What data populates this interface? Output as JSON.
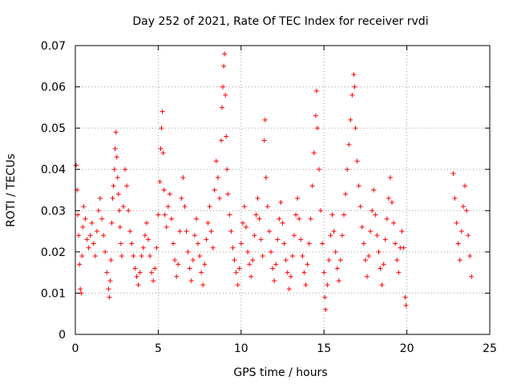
{
  "chart_data": {
    "type": "scatter",
    "title": "Day 252 of 2021, Rate Of TEC Index for receiver rvdi",
    "xlabel": "GPS time / hours",
    "ylabel": "ROTI / TECUs",
    "xlim": [
      0,
      25
    ],
    "ylim": [
      0,
      0.07
    ],
    "grid": true,
    "marker": "+",
    "series_color": "#ff0000",
    "x_ticks": [
      "0",
      "5",
      "10",
      "15",
      "20",
      "25"
    ],
    "y_ticks": [
      "0",
      "0.01",
      "0.02",
      "0.03",
      "0.04",
      "0.05",
      "0.06",
      "0.07"
    ],
    "series": [
      {
        "points": [
          [
            0.05,
            0.041
          ],
          [
            0.1,
            0.035
          ],
          [
            0.15,
            0.029
          ],
          [
            0.2,
            0.024
          ],
          [
            0.25,
            0.017
          ],
          [
            0.3,
            0.011
          ],
          [
            0.35,
            0.01
          ],
          [
            0.4,
            0.019
          ],
          [
            0.45,
            0.026
          ],
          [
            0.5,
            0.031
          ],
          [
            0.6,
            0.028
          ],
          [
            0.7,
            0.023
          ],
          [
            0.8,
            0.021
          ],
          [
            0.9,
            0.024
          ],
          [
            1.0,
            0.027
          ],
          [
            1.1,
            0.022
          ],
          [
            1.2,
            0.019
          ],
          [
            1.3,
            0.025
          ],
          [
            1.4,
            0.03
          ],
          [
            1.5,
            0.033
          ],
          [
            1.6,
            0.028
          ],
          [
            1.7,
            0.024
          ],
          [
            1.8,
            0.02
          ],
          [
            1.9,
            0.015
          ],
          [
            2.0,
            0.011
          ],
          [
            2.05,
            0.009
          ],
          [
            2.1,
            0.013
          ],
          [
            2.15,
            0.018
          ],
          [
            2.2,
            0.027
          ],
          [
            2.25,
            0.033
          ],
          [
            2.3,
            0.036
          ],
          [
            2.35,
            0.04
          ],
          [
            2.4,
            0.045
          ],
          [
            2.45,
            0.049
          ],
          [
            2.5,
            0.043
          ],
          [
            2.55,
            0.038
          ],
          [
            2.6,
            0.034
          ],
          [
            2.65,
            0.03
          ],
          [
            2.7,
            0.026
          ],
          [
            2.75,
            0.022
          ],
          [
            2.8,
            0.019
          ],
          [
            2.9,
            0.031
          ],
          [
            3.0,
            0.04
          ],
          [
            3.1,
            0.036
          ],
          [
            3.2,
            0.03
          ],
          [
            3.3,
            0.025
          ],
          [
            3.4,
            0.022
          ],
          [
            3.5,
            0.019
          ],
          [
            3.6,
            0.016
          ],
          [
            3.7,
            0.014
          ],
          [
            3.8,
            0.012
          ],
          [
            3.9,
            0.015
          ],
          [
            4.0,
            0.019
          ],
          [
            4.1,
            0.021
          ],
          [
            4.2,
            0.024
          ],
          [
            4.3,
            0.027
          ],
          [
            4.4,
            0.023
          ],
          [
            4.5,
            0.019
          ],
          [
            4.6,
            0.015
          ],
          [
            4.7,
            0.013
          ],
          [
            4.8,
            0.016
          ],
          [
            4.9,
            0.021
          ],
          [
            5.0,
            0.029
          ],
          [
            5.1,
            0.037
          ],
          [
            5.15,
            0.045
          ],
          [
            5.2,
            0.05
          ],
          [
            5.25,
            0.054
          ],
          [
            5.3,
            0.044
          ],
          [
            5.35,
            0.035
          ],
          [
            5.4,
            0.029
          ],
          [
            5.5,
            0.026
          ],
          [
            5.6,
            0.031
          ],
          [
            5.7,
            0.034
          ],
          [
            5.8,
            0.028
          ],
          [
            5.9,
            0.022
          ],
          [
            6.0,
            0.018
          ],
          [
            6.1,
            0.014
          ],
          [
            6.2,
            0.017
          ],
          [
            6.3,
            0.025
          ],
          [
            6.4,
            0.033
          ],
          [
            6.5,
            0.038
          ],
          [
            6.6,
            0.031
          ],
          [
            6.7,
            0.025
          ],
          [
            6.8,
            0.02
          ],
          [
            6.9,
            0.016
          ],
          [
            7.0,
            0.013
          ],
          [
            7.1,
            0.018
          ],
          [
            7.2,
            0.024
          ],
          [
            7.3,
            0.028
          ],
          [
            7.4,
            0.022
          ],
          [
            7.5,
            0.019
          ],
          [
            7.6,
            0.015
          ],
          [
            7.7,
            0.012
          ],
          [
            7.8,
            0.017
          ],
          [
            7.9,
            0.023
          ],
          [
            8.0,
            0.027
          ],
          [
            8.1,
            0.031
          ],
          [
            8.2,
            0.025
          ],
          [
            8.3,
            0.021
          ],
          [
            8.4,
            0.035
          ],
          [
            8.5,
            0.042
          ],
          [
            8.6,
            0.038
          ],
          [
            8.7,
            0.033
          ],
          [
            8.8,
            0.047
          ],
          [
            8.85,
            0.055
          ],
          [
            8.9,
            0.06
          ],
          [
            8.95,
            0.065
          ],
          [
            9.0,
            0.068
          ],
          [
            9.05,
            0.058
          ],
          [
            9.1,
            0.048
          ],
          [
            9.15,
            0.04
          ],
          [
            9.2,
            0.034
          ],
          [
            9.3,
            0.029
          ],
          [
            9.4,
            0.025
          ],
          [
            9.5,
            0.021
          ],
          [
            9.6,
            0.018
          ],
          [
            9.7,
            0.015
          ],
          [
            9.8,
            0.012
          ],
          [
            9.9,
            0.016
          ],
          [
            10.0,
            0.022
          ],
          [
            10.1,
            0.027
          ],
          [
            10.2,
            0.031
          ],
          [
            10.3,
            0.026
          ],
          [
            10.4,
            0.02
          ],
          [
            10.5,
            0.017
          ],
          [
            10.6,
            0.014
          ],
          [
            10.7,
            0.018
          ],
          [
            10.8,
            0.024
          ],
          [
            10.9,
            0.029
          ],
          [
            11.0,
            0.033
          ],
          [
            11.1,
            0.028
          ],
          [
            11.2,
            0.023
          ],
          [
            11.3,
            0.019
          ],
          [
            11.4,
            0.047
          ],
          [
            11.45,
            0.052
          ],
          [
            11.5,
            0.038
          ],
          [
            11.6,
            0.031
          ],
          [
            11.7,
            0.025
          ],
          [
            11.8,
            0.02
          ],
          [
            11.9,
            0.016
          ],
          [
            12.0,
            0.013
          ],
          [
            12.1,
            0.017
          ],
          [
            12.2,
            0.023
          ],
          [
            12.3,
            0.028
          ],
          [
            12.4,
            0.032
          ],
          [
            12.5,
            0.027
          ],
          [
            12.6,
            0.022
          ],
          [
            12.7,
            0.018
          ],
          [
            12.8,
            0.015
          ],
          [
            12.9,
            0.011
          ],
          [
            13.0,
            0.014
          ],
          [
            13.1,
            0.019
          ],
          [
            13.2,
            0.024
          ],
          [
            13.3,
            0.029
          ],
          [
            13.4,
            0.033
          ],
          [
            13.5,
            0.028
          ],
          [
            13.6,
            0.023
          ],
          [
            13.7,
            0.019
          ],
          [
            13.8,
            0.015
          ],
          [
            13.9,
            0.012
          ],
          [
            14.0,
            0.017
          ],
          [
            14.1,
            0.022
          ],
          [
            14.2,
            0.028
          ],
          [
            14.3,
            0.036
          ],
          [
            14.4,
            0.044
          ],
          [
            14.5,
            0.053
          ],
          [
            14.55,
            0.059
          ],
          [
            14.6,
            0.05
          ],
          [
            14.7,
            0.04
          ],
          [
            14.8,
            0.03
          ],
          [
            14.9,
            0.022
          ],
          [
            15.0,
            0.015
          ],
          [
            15.05,
            0.009
          ],
          [
            15.1,
            0.006
          ],
          [
            15.2,
            0.012
          ],
          [
            15.3,
            0.018
          ],
          [
            15.4,
            0.024
          ],
          [
            15.5,
            0.029
          ],
          [
            15.6,
            0.025
          ],
          [
            15.7,
            0.02
          ],
          [
            15.8,
            0.016
          ],
          [
            15.9,
            0.013
          ],
          [
            16.0,
            0.018
          ],
          [
            16.1,
            0.024
          ],
          [
            16.2,
            0.029
          ],
          [
            16.3,
            0.034
          ],
          [
            16.4,
            0.04
          ],
          [
            16.5,
            0.046
          ],
          [
            16.6,
            0.052
          ],
          [
            16.7,
            0.058
          ],
          [
            16.8,
            0.063
          ],
          [
            16.85,
            0.06
          ],
          [
            16.9,
            0.05
          ],
          [
            17.0,
            0.042
          ],
          [
            17.1,
            0.036
          ],
          [
            17.2,
            0.031
          ],
          [
            17.3,
            0.026
          ],
          [
            17.4,
            0.022
          ],
          [
            17.5,
            0.018
          ],
          [
            17.6,
            0.014
          ],
          [
            17.7,
            0.019
          ],
          [
            17.8,
            0.025
          ],
          [
            17.9,
            0.03
          ],
          [
            18.0,
            0.035
          ],
          [
            18.1,
            0.029
          ],
          [
            18.2,
            0.024
          ],
          [
            18.3,
            0.02
          ],
          [
            18.4,
            0.016
          ],
          [
            18.5,
            0.012
          ],
          [
            18.6,
            0.017
          ],
          [
            18.7,
            0.023
          ],
          [
            18.8,
            0.028
          ],
          [
            18.9,
            0.033
          ],
          [
            19.0,
            0.038
          ],
          [
            19.1,
            0.032
          ],
          [
            19.2,
            0.027
          ],
          [
            19.3,
            0.022
          ],
          [
            19.4,
            0.018
          ],
          [
            19.5,
            0.015
          ],
          [
            19.6,
            0.021
          ],
          [
            19.7,
            0.025
          ],
          [
            19.8,
            0.021
          ],
          [
            19.9,
            0.009
          ],
          [
            19.95,
            0.007
          ],
          [
            22.8,
            0.039
          ],
          [
            22.9,
            0.033
          ],
          [
            23.0,
            0.027
          ],
          [
            23.1,
            0.022
          ],
          [
            23.2,
            0.018
          ],
          [
            23.3,
            0.025
          ],
          [
            23.4,
            0.031
          ],
          [
            23.5,
            0.036
          ],
          [
            23.6,
            0.03
          ],
          [
            23.7,
            0.024
          ],
          [
            23.8,
            0.019
          ],
          [
            23.9,
            0.014
          ]
        ]
      }
    ]
  }
}
